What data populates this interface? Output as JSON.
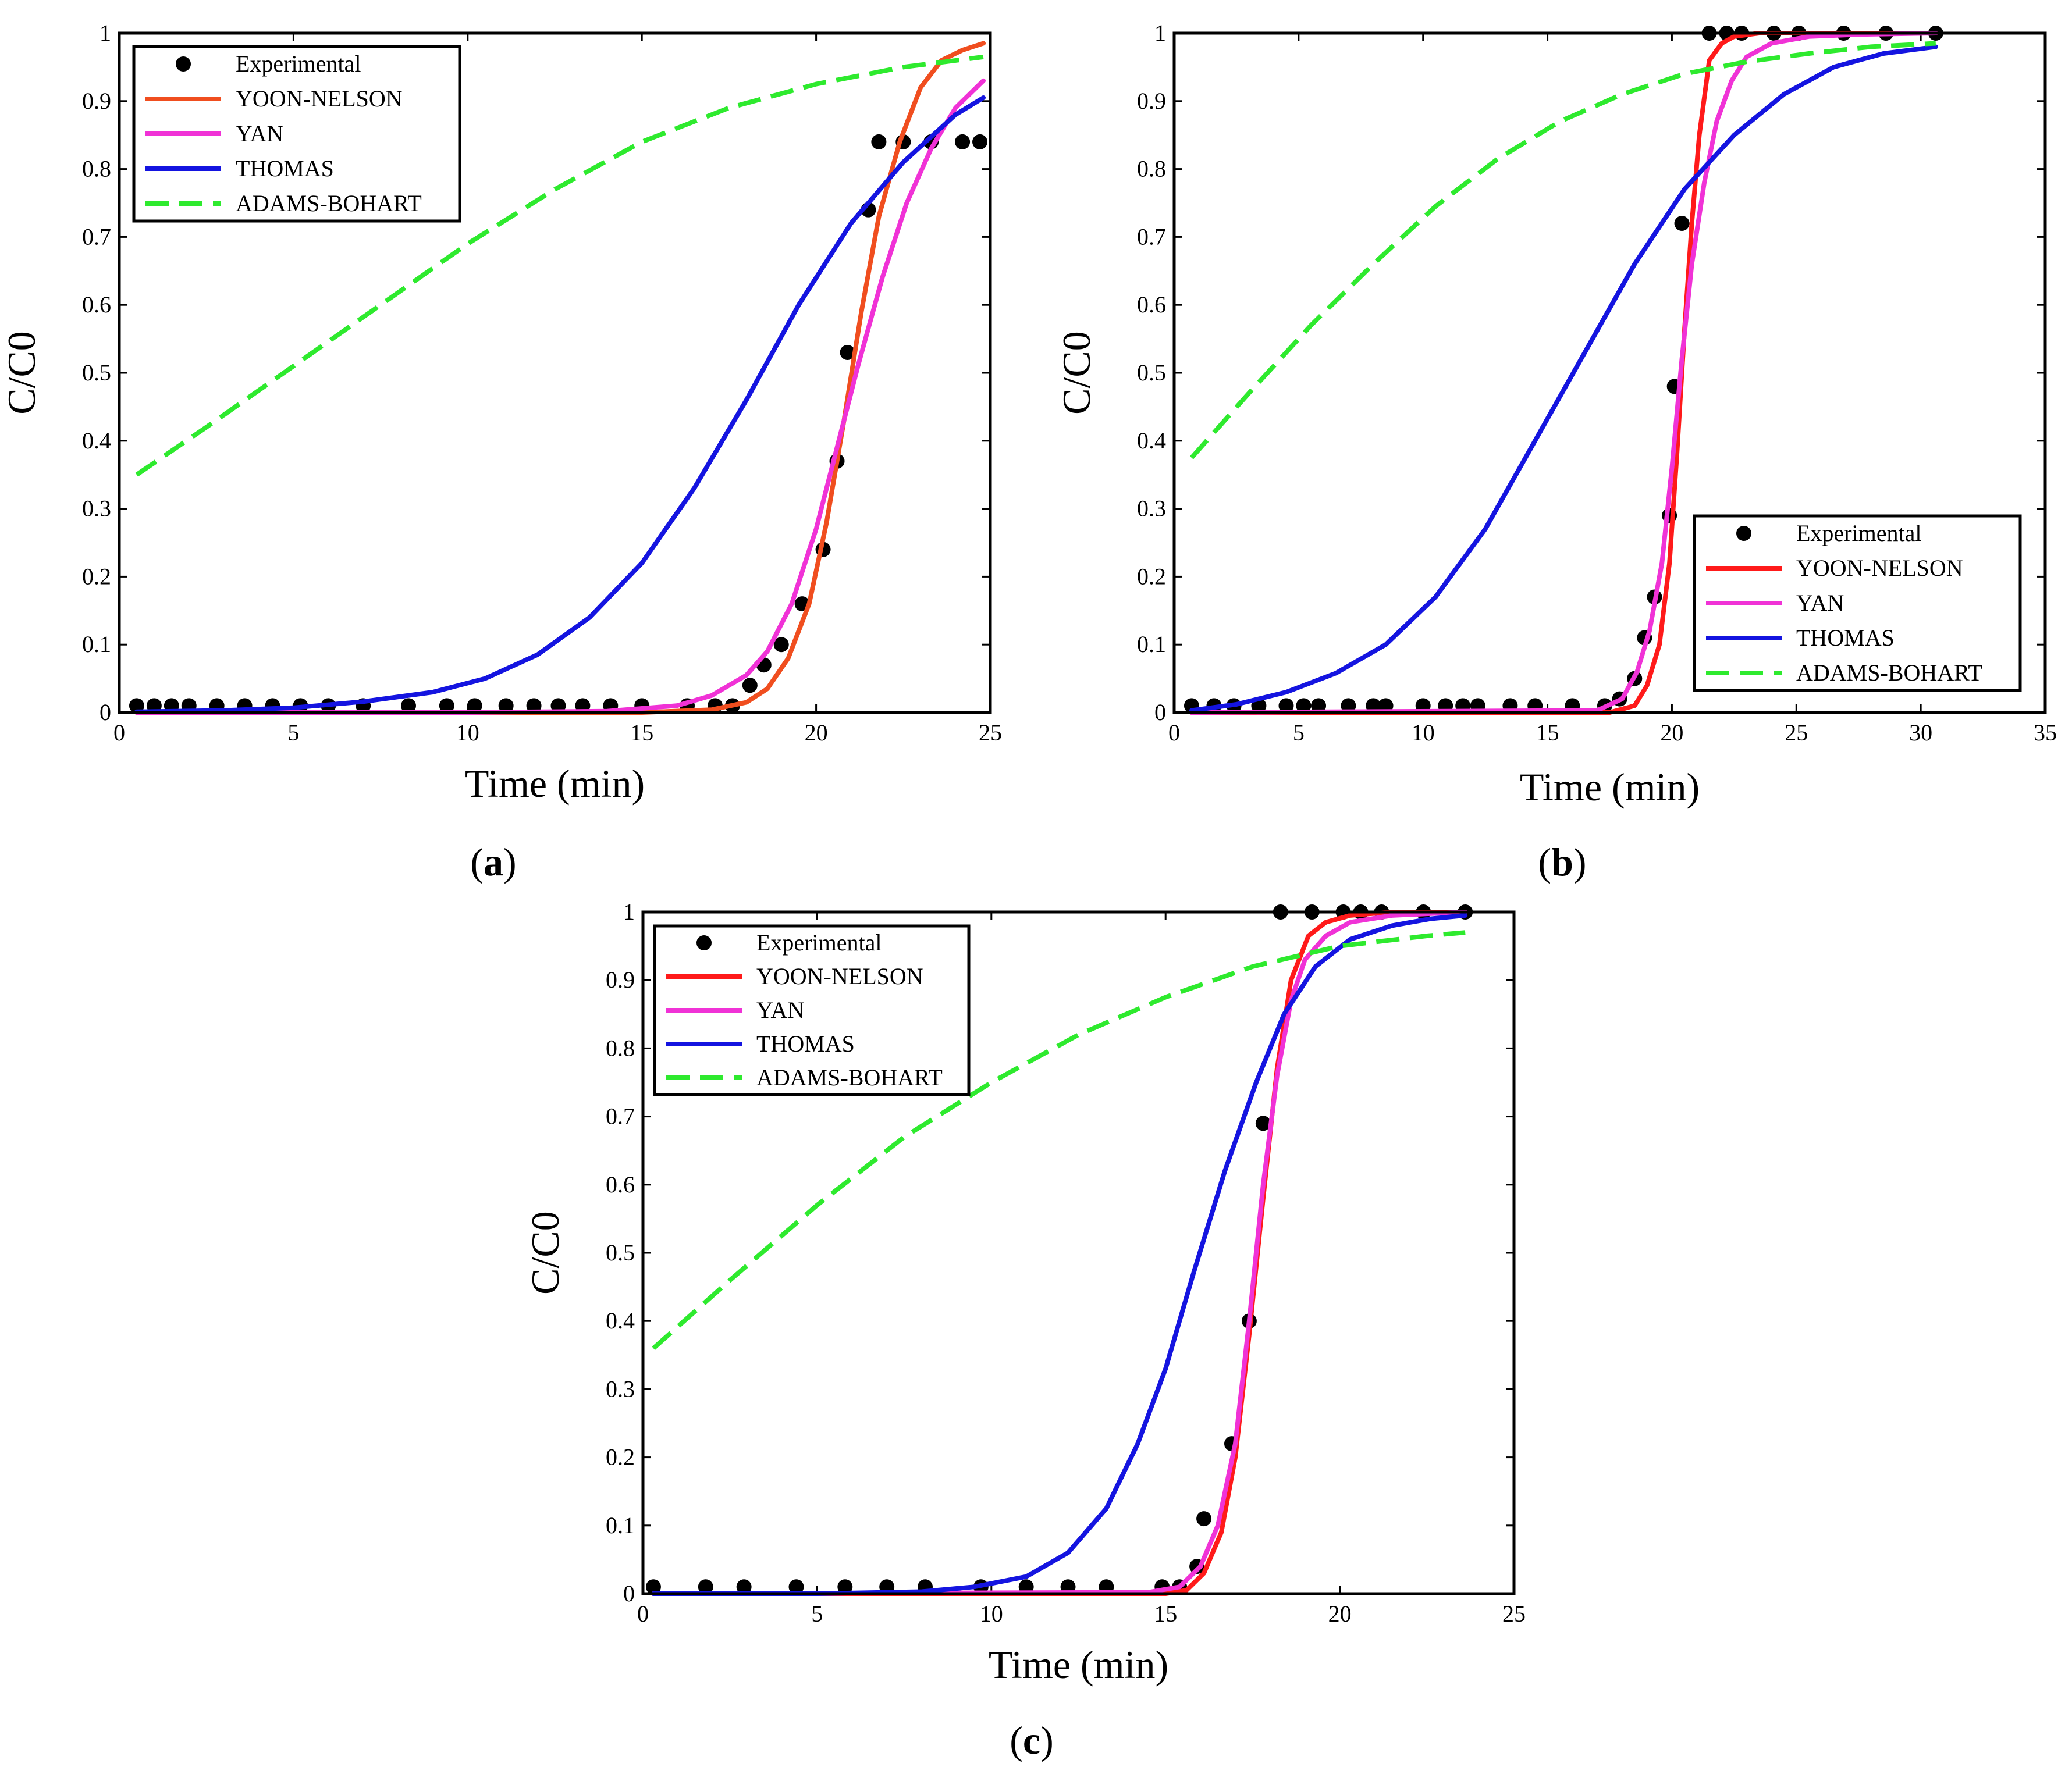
{
  "chart_data": [
    {
      "id": "a",
      "type": "line",
      "panel_label": "(a)",
      "xlabel": "Time (min)",
      "ylabel": "C/C0",
      "xlim": [
        0,
        25
      ],
      "ylim": [
        0,
        1
      ],
      "xticks": [
        0,
        5,
        10,
        15,
        20,
        25
      ],
      "yticks": [
        0,
        0.1,
        0.2,
        0.3,
        0.4,
        0.5,
        0.6,
        0.7,
        0.8,
        0.9,
        1
      ],
      "legend_position": "top-left",
      "series": [
        {
          "name": "Experimental",
          "kind": "scatter",
          "color": "#000000",
          "x": [
            0.5,
            1,
            1.5,
            2,
            2.8,
            3.6,
            4.4,
            5.2,
            6,
            7,
            8.3,
            9.4,
            10.2,
            11.1,
            11.9,
            12.6,
            13.3,
            14.1,
            15,
            16.3,
            17.1,
            17.6,
            18.1,
            18.5,
            19,
            19.6,
            20.2,
            20.6,
            20.9,
            21.5,
            21.8,
            22.5,
            23.3,
            24.2,
            24.7
          ],
          "y": [
            0.01,
            0.01,
            0.01,
            0.01,
            0.01,
            0.01,
            0.01,
            0.01,
            0.01,
            0.01,
            0.01,
            0.01,
            0.01,
            0.01,
            0.01,
            0.01,
            0.01,
            0.01,
            0.01,
            0.01,
            0.01,
            0.01,
            0.04,
            0.07,
            0.1,
            0.16,
            0.24,
            0.37,
            0.53,
            0.74,
            0.84,
            0.84,
            0.84,
            0.84,
            0.84
          ]
        },
        {
          "name": "YOON-NELSON",
          "kind": "line",
          "color": "#f04e1f",
          "x": [
            0.5,
            15,
            17,
            18,
            18.6,
            19.2,
            19.8,
            20.3,
            20.8,
            21.3,
            21.8,
            22.4,
            23,
            23.6,
            24.2,
            24.8
          ],
          "y": [
            0,
            0,
            0.004,
            0.015,
            0.035,
            0.08,
            0.16,
            0.28,
            0.43,
            0.59,
            0.73,
            0.84,
            0.92,
            0.96,
            0.975,
            0.985
          ]
        },
        {
          "name": "YAN",
          "kind": "line",
          "color": "#f032d6",
          "x": [
            0.5,
            10,
            14,
            16,
            17,
            18,
            18.6,
            19.3,
            20,
            20.6,
            21.2,
            21.9,
            22.6,
            23.3,
            24,
            24.8
          ],
          "y": [
            0,
            0,
            0.002,
            0.01,
            0.025,
            0.055,
            0.09,
            0.16,
            0.27,
            0.39,
            0.51,
            0.64,
            0.75,
            0.83,
            0.89,
            0.93
          ]
        },
        {
          "name": "THOMAS",
          "kind": "line",
          "color": "#1414e0",
          "x": [
            0.5,
            3,
            5,
            7,
            9,
            10.5,
            12,
            13.5,
            15,
            16.5,
            18,
            19.5,
            21,
            22.5,
            24,
            24.8
          ],
          "y": [
            0.001,
            0.003,
            0.007,
            0.016,
            0.03,
            0.05,
            0.085,
            0.14,
            0.22,
            0.33,
            0.46,
            0.6,
            0.72,
            0.81,
            0.88,
            0.905
          ]
        },
        {
          "name": "ADAMS-BOHART",
          "kind": "dashed",
          "color": "#2eea2e",
          "x": [
            0.5,
            2.5,
            5,
            7.5,
            10,
            12.5,
            15,
            17.5,
            20,
            22.5,
            24.8
          ],
          "y": [
            0.35,
            0.42,
            0.51,
            0.6,
            0.69,
            0.77,
            0.84,
            0.89,
            0.925,
            0.95,
            0.965
          ]
        }
      ]
    },
    {
      "id": "b",
      "type": "line",
      "panel_label": "(b)",
      "xlabel": "Time (min)",
      "ylabel": "C/C0",
      "xlim": [
        0,
        35
      ],
      "ylim": [
        0,
        1
      ],
      "xticks": [
        0,
        5,
        10,
        15,
        20,
        25,
        30,
        35
      ],
      "yticks": [
        0,
        0.1,
        0.2,
        0.3,
        0.4,
        0.5,
        0.6,
        0.7,
        0.8,
        0.9,
        1
      ],
      "legend_position": "bottom-right",
      "series": [
        {
          "name": "Experimental",
          "kind": "scatter",
          "color": "#000000",
          "x": [
            0.7,
            1.6,
            2.4,
            3.4,
            4.5,
            5.2,
            5.8,
            7,
            8,
            8.5,
            10,
            10.9,
            11.6,
            12.2,
            13.5,
            14.5,
            16,
            17.3,
            17.9,
            18.5,
            18.9,
            19.3,
            19.9,
            20.1,
            20.4,
            21.5,
            22.2,
            22.8,
            24.1,
            25.1,
            26.9,
            28.6,
            30.6
          ],
          "y": [
            0.01,
            0.01,
            0.01,
            0.01,
            0.01,
            0.01,
            0.01,
            0.01,
            0.01,
            0.01,
            0.01,
            0.01,
            0.01,
            0.01,
            0.01,
            0.01,
            0.01,
            0.01,
            0.02,
            0.05,
            0.11,
            0.17,
            0.29,
            0.48,
            0.72,
            1,
            1,
            1,
            1,
            1,
            1,
            1,
            1
          ]
        },
        {
          "name": "YOON-NELSON",
          "kind": "line",
          "color": "#ff1a1a",
          "x": [
            0.7,
            17.5,
            18.5,
            19,
            19.5,
            19.9,
            20.2,
            20.5,
            20.8,
            21.1,
            21.5,
            22,
            22.5,
            23.5,
            30.6
          ],
          "y": [
            0,
            0,
            0.01,
            0.04,
            0.1,
            0.22,
            0.38,
            0.56,
            0.72,
            0.85,
            0.96,
            0.985,
            0.995,
            1,
            1
          ]
        },
        {
          "name": "YAN",
          "kind": "line",
          "color": "#f032d6",
          "x": [
            0.7,
            17,
            18,
            18.6,
            19.1,
            19.6,
            20,
            20.4,
            20.8,
            21.3,
            21.8,
            22.4,
            23,
            24,
            25.5,
            27.5,
            30.6
          ],
          "y": [
            0,
            0.003,
            0.02,
            0.06,
            0.12,
            0.22,
            0.36,
            0.52,
            0.66,
            0.78,
            0.87,
            0.93,
            0.965,
            0.985,
            0.995,
            0.998,
            1
          ]
        },
        {
          "name": "THOMAS",
          "kind": "line",
          "color": "#1414e0",
          "x": [
            0.7,
            2.5,
            4.5,
            6.5,
            8.5,
            10.5,
            12.5,
            14.5,
            16.5,
            18.5,
            20.5,
            22.5,
            24.5,
            26.5,
            28.5,
            30.6
          ],
          "y": [
            0.003,
            0.012,
            0.03,
            0.058,
            0.1,
            0.17,
            0.27,
            0.4,
            0.53,
            0.66,
            0.77,
            0.85,
            0.91,
            0.95,
            0.97,
            0.98
          ]
        },
        {
          "name": "ADAMS-BOHART",
          "kind": "dashed",
          "color": "#2eea2e",
          "x": [
            0.7,
            3,
            5.5,
            8,
            10.5,
            13,
            15.5,
            18,
            20.5,
            23,
            25.5,
            28,
            30.6
          ],
          "y": [
            0.375,
            0.47,
            0.57,
            0.66,
            0.745,
            0.815,
            0.87,
            0.91,
            0.94,
            0.958,
            0.97,
            0.98,
            0.985
          ]
        }
      ]
    },
    {
      "id": "c",
      "type": "line",
      "panel_label": "(c)",
      "xlabel": "Time (min)",
      "ylabel": "C/C0",
      "xlim": [
        0,
        25
      ],
      "ylim": [
        0,
        1
      ],
      "xticks": [
        0,
        5,
        10,
        15,
        20,
        25
      ],
      "yticks": [
        0,
        0.1,
        0.2,
        0.3,
        0.4,
        0.5,
        0.6,
        0.7,
        0.8,
        0.9,
        1
      ],
      "legend_position": "top-left",
      "series": [
        {
          "name": "Experimental",
          "kind": "scatter",
          "color": "#000000",
          "x": [
            0.3,
            1.8,
            2.9,
            4.4,
            5.8,
            7,
            8.1,
            9.7,
            11,
            12.2,
            13.3,
            14.9,
            15.4,
            15.9,
            16.1,
            16.9,
            17.4,
            17.8,
            18.3,
            19.2,
            20.1,
            20.6,
            21.2,
            22.4,
            23.6
          ],
          "y": [
            0.01,
            0.01,
            0.01,
            0.01,
            0.01,
            0.01,
            0.01,
            0.01,
            0.01,
            0.01,
            0.01,
            0.01,
            0.01,
            0.04,
            0.11,
            0.22,
            0.4,
            0.69,
            1,
            1,
            1,
            1,
            1,
            1,
            1
          ]
        },
        {
          "name": "YOON-NELSON",
          "kind": "line",
          "color": "#ff1a1a",
          "x": [
            0.3,
            15,
            15.6,
            16.1,
            16.6,
            17,
            17.4,
            17.8,
            18.2,
            18.6,
            19.1,
            19.6,
            20.3,
            21.5,
            23.6
          ],
          "y": [
            0,
            0,
            0.005,
            0.03,
            0.09,
            0.2,
            0.38,
            0.58,
            0.77,
            0.9,
            0.965,
            0.985,
            0.995,
            1,
            1
          ]
        },
        {
          "name": "YAN",
          "kind": "line",
          "color": "#f032d6",
          "x": [
            0.3,
            14.5,
            15.4,
            16,
            16.5,
            17,
            17.4,
            17.8,
            18.2,
            18.6,
            19,
            19.6,
            20.3,
            21.5,
            23.6
          ],
          "y": [
            0,
            0.002,
            0.01,
            0.04,
            0.1,
            0.22,
            0.4,
            0.6,
            0.76,
            0.87,
            0.93,
            0.965,
            0.985,
            0.995,
            1
          ]
        },
        {
          "name": "THOMAS",
          "kind": "line",
          "color": "#1414e0",
          "x": [
            0.3,
            5,
            8,
            9.5,
            11,
            12.2,
            13.3,
            14.2,
            15,
            15.8,
            16.7,
            17.6,
            18.4,
            19.3,
            20.3,
            21.5,
            22.6,
            23.6
          ],
          "y": [
            0,
            0,
            0.003,
            0.01,
            0.025,
            0.06,
            0.125,
            0.22,
            0.33,
            0.47,
            0.62,
            0.75,
            0.85,
            0.92,
            0.96,
            0.98,
            0.99,
            0.995
          ]
        },
        {
          "name": "ADAMS-BOHART",
          "kind": "dashed",
          "color": "#2eea2e",
          "x": [
            0.3,
            2.5,
            5,
            7.5,
            10,
            12.5,
            15,
            17.5,
            20,
            22.5,
            23.6
          ],
          "y": [
            0.36,
            0.46,
            0.57,
            0.67,
            0.75,
            0.82,
            0.875,
            0.92,
            0.95,
            0.965,
            0.97
          ]
        }
      ]
    }
  ]
}
